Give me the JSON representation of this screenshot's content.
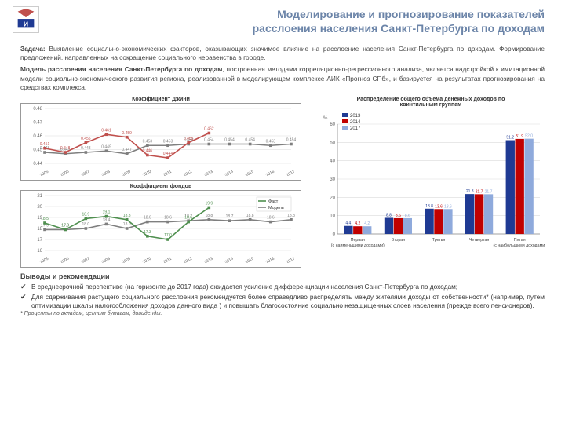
{
  "title": {
    "line1": "Моделирование и прогнозирование показателей",
    "line2": "расслоения населения Санкт-Петербурга по доходам"
  },
  "para1_label": "Задача:",
  "para1": " Выявление социально-экономических факторов, оказывающих значимое влияние на расслоение населения Санкт-Петербурга по доходам. Формирование предложений, направленных на сокращение социального неравенства в городе.",
  "para2_label": "Модель расслоения населения Санкт-Петербурга по доходам",
  "para2": ", построенная методами корреляционно-регрессионного анализа, является надстройкой к имитационной модели социально-экономического развития региона, реализованной в моделирующем комплексе АИК «Прогноз СПб», и базируется на результатах прогнозирования на средствах комплекса.",
  "gini": {
    "title": "Коэффициент Джини",
    "years": [
      "2005",
      "2006",
      "2007",
      "2008",
      "2009",
      "2010",
      "2011",
      "2012",
      "2013",
      "2014",
      "2015",
      "2016",
      "2017"
    ],
    "fact": [
      0.451,
      0.448,
      0.455,
      0.461,
      0.459,
      0.446,
      0.444,
      0.455,
      0.462,
      null,
      null,
      null,
      null
    ],
    "model": [
      0.448,
      0.447,
      0.448,
      0.449,
      0.447,
      0.453,
      0.453,
      0.454,
      0.454,
      0.454,
      0.454,
      0.453,
      0.454
    ],
    "ylim": [
      0.44,
      0.48
    ],
    "ytick": 0.01,
    "fact_color": "#c0504d",
    "model_color": "#7f7f7f",
    "grid_color": "#d9d9d9"
  },
  "funds": {
    "title": "Коэффициент фондов",
    "years": [
      "2005",
      "2006",
      "2007",
      "2008",
      "2009",
      "2010",
      "2011",
      "2012",
      "2013",
      "2014",
      "2015",
      "2016",
      "2017"
    ],
    "fact": [
      18.5,
      17.9,
      18.9,
      19.1,
      18.8,
      17.3,
      17.0,
      18.6,
      19.9,
      null,
      null,
      null,
      null
    ],
    "model": [
      17.9,
      17.9,
      18.0,
      18.4,
      18.0,
      18.6,
      18.6,
      18.7,
      18.8,
      18.7,
      18.8,
      18.6,
      18.8
    ],
    "ylim": [
      16,
      21
    ],
    "ytick": 1,
    "fact_color": "#4f8f4f",
    "model_color": "#7f7f7f",
    "grid_color": "#d9d9d9",
    "legend": [
      "Факт",
      "Модель"
    ]
  },
  "quint": {
    "title1": "Распределение общего объема денежных доходов по",
    "title2": "квинтильным группам",
    "xlabels": [
      "Первая\n(с наименьшими доходами)",
      "Вторая",
      "Третья",
      "Четвертая",
      "Пятая\n(с наибольшими доходами)"
    ],
    "series": [
      {
        "year": "2013",
        "color": "#1f3a93",
        "values": [
          4.4,
          8.8,
          13.8,
          21.8,
          51.2
        ]
      },
      {
        "year": "2014",
        "color": "#c00000",
        "values": [
          4.2,
          8.6,
          13.6,
          21.7,
          51.9
        ]
      },
      {
        "year": "2017",
        "color": "#8faadc",
        "values": [
          4.2,
          8.6,
          13.6,
          21.7,
          52.0
        ]
      }
    ],
    "ylim": [
      0,
      60
    ],
    "ytick": 10,
    "unit": "%",
    "grid_color": "#d9d9d9"
  },
  "concl_head": "Выводы и рекомендации",
  "bullet1": "В среднесрочной перспективе (на горизонте до 2017 года) ожидается усиление дифференциации населения Санкт-Петербурга по доходам;",
  "bullet2": "Для сдерживания растущего социального расслоения рекомендуется более справедливо распределять между жителями доходы от собственности* (например, путем оптимизации шкалы налогообложения доходов данного вида ) и повышать благосостояние социально незащищенных слоев населения (прежде всего пенсионеров).",
  "footnote": "* Проценты по вкладам, ценным бумагам, дивиденды."
}
